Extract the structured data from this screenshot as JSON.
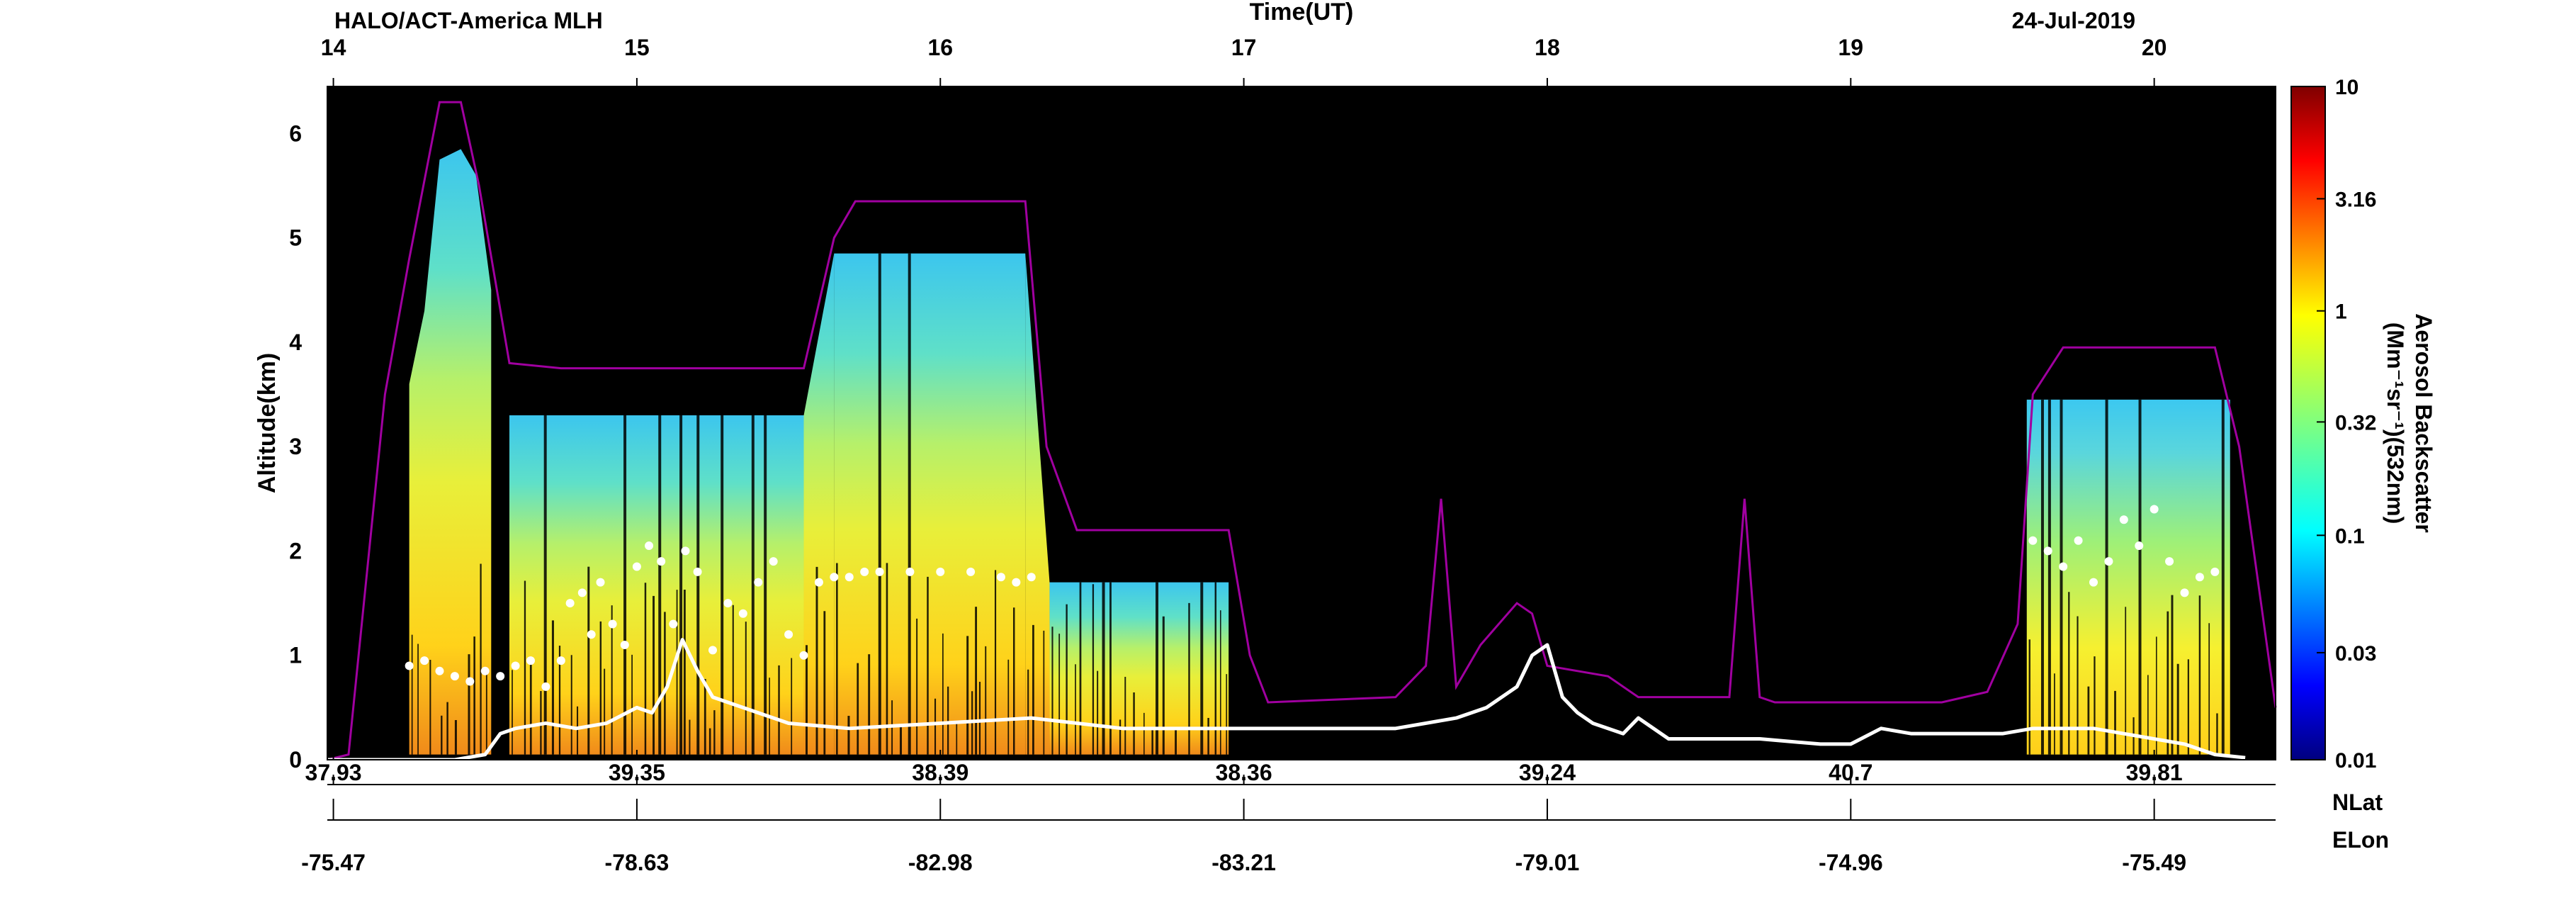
{
  "chart_data": {
    "type": "heatmap",
    "title_left": "HALO/ACT-America  MLH",
    "title_center": "Time(UT)",
    "title_right": "24-Jul-2019",
    "ylabel": "Altitude(km)",
    "xlim": [
      13.98,
      20.4
    ],
    "ylim": [
      0,
      6.45
    ],
    "time_ticks": [
      14,
      15,
      16,
      17,
      18,
      19,
      20
    ],
    "time_tick_labels": [
      "14",
      "15",
      "16",
      "17",
      "18",
      "19",
      "20"
    ],
    "y_ticks": [
      0,
      1,
      2,
      3,
      4,
      5,
      6
    ],
    "y_tick_labels": [
      "0",
      "1",
      "2",
      "3",
      "4",
      "5",
      "6"
    ],
    "lat_label": "NLat",
    "lat_ticks": [
      {
        "t": 14,
        "label": "37.93"
      },
      {
        "t": 15,
        "label": "39.35"
      },
      {
        "t": 16,
        "label": "38.39"
      },
      {
        "t": 17,
        "label": "38.36"
      },
      {
        "t": 18,
        "label": "39.24"
      },
      {
        "t": 19,
        "label": "40.7"
      },
      {
        "t": 20,
        "label": "39.81"
      }
    ],
    "lon_label": "ELon",
    "lon_ticks": [
      {
        "t": 14,
        "label": "-75.47"
      },
      {
        "t": 15,
        "label": "-78.63"
      },
      {
        "t": 16,
        "label": "-82.98"
      },
      {
        "t": 17,
        "label": "-83.21"
      },
      {
        "t": 18,
        "label": "-79.01"
      },
      {
        "t": 19,
        "label": "-74.96"
      },
      {
        "t": 20,
        "label": "-75.49"
      }
    ],
    "colorbar": {
      "label_line1": "Aerosol Backscatter",
      "label_line2": "(Mm⁻¹sr⁻¹)(532nm)",
      "scale": "log",
      "range": [
        0.01,
        10
      ],
      "ticks": [
        0.01,
        0.03,
        0.1,
        0.32,
        1,
        3.16,
        10
      ],
      "tick_labels": [
        "0.01",
        "0.03",
        "0.1",
        "0.32",
        "1",
        "3.16",
        "10"
      ],
      "colormap": "jet"
    },
    "aircraft_altitude": {
      "name": "",
      "color": "#a000a0",
      "t": [
        13.98,
        14.05,
        14.17,
        14.25,
        14.35,
        14.42,
        14.48,
        14.58,
        14.75,
        15.0,
        15.35,
        15.55,
        15.65,
        15.72,
        16.0,
        16.28,
        16.35,
        16.45,
        16.95,
        17.02,
        17.08,
        17.5,
        17.6,
        17.65,
        17.7,
        17.78,
        17.9,
        17.95,
        18.0,
        18.2,
        18.3,
        18.6,
        18.65,
        18.7,
        18.75,
        19.0,
        19.3,
        19.45,
        19.55,
        19.6,
        19.7,
        20.0,
        20.2,
        20.28,
        20.4
      ],
      "alt": [
        0.0,
        0.05,
        3.5,
        4.8,
        6.3,
        6.3,
        5.5,
        3.8,
        3.75,
        3.75,
        3.75,
        3.75,
        5.0,
        5.35,
        5.35,
        5.35,
        3.0,
        2.2,
        2.2,
        1.0,
        0.55,
        0.6,
        0.9,
        2.5,
        0.7,
        1.1,
        1.5,
        1.4,
        0.9,
        0.8,
        0.6,
        0.6,
        2.5,
        0.6,
        0.55,
        0.55,
        0.55,
        0.65,
        1.3,
        3.5,
        3.95,
        3.95,
        3.95,
        3.0,
        0.5
      ]
    },
    "mlh_dots": {
      "name": "",
      "t": [
        14.25,
        14.3,
        14.35,
        14.4,
        14.45,
        14.5,
        14.55,
        14.6,
        14.65,
        14.7,
        14.75,
        14.78,
        14.82,
        14.85,
        14.88,
        14.92,
        14.96,
        15.0,
        15.04,
        15.08,
        15.12,
        15.16,
        15.2,
        15.25,
        15.3,
        15.35,
        15.4,
        15.45,
        15.5,
        15.55,
        15.6,
        15.65,
        15.7,
        15.75,
        15.8,
        15.9,
        16.0,
        16.1,
        16.2,
        16.25,
        16.3,
        19.6,
        19.65,
        19.7,
        19.75,
        19.8,
        19.85,
        19.9,
        19.95,
        20.0,
        20.05,
        20.1,
        20.15,
        20.2
      ],
      "alt": [
        0.9,
        0.95,
        0.85,
        0.8,
        0.75,
        0.85,
        0.8,
        0.9,
        0.95,
        0.7,
        0.95,
        1.5,
        1.6,
        1.2,
        1.7,
        1.3,
        1.1,
        1.85,
        2.05,
        1.9,
        1.3,
        2.0,
        1.8,
        1.05,
        1.5,
        1.4,
        1.7,
        1.9,
        1.2,
        1.0,
        1.7,
        1.75,
        1.75,
        1.8,
        1.8,
        1.8,
        1.8,
        1.8,
        1.75,
        1.7,
        1.75,
        2.1,
        2.0,
        1.85,
        2.1,
        1.7,
        1.9,
        2.3,
        2.05,
        2.4,
        1.9,
        1.6,
        1.75,
        1.8
      ]
    },
    "mlh_lower": {
      "name": "",
      "t": [
        13.98,
        14.4,
        14.5,
        14.55,
        14.6,
        14.7,
        14.8,
        14.9,
        15.0,
        15.05,
        15.1,
        15.15,
        15.2,
        15.25,
        15.3,
        15.4,
        15.5,
        15.7,
        16.0,
        16.3,
        16.6,
        17.0,
        17.2,
        17.5,
        17.7,
        17.8,
        17.9,
        17.95,
        18.0,
        18.05,
        18.1,
        18.15,
        18.25,
        18.3,
        18.35,
        18.4,
        18.5,
        18.7,
        18.9,
        19.0,
        19.1,
        19.2,
        19.35,
        19.5,
        19.6,
        19.7,
        19.8,
        19.9,
        20.0,
        20.1,
        20.2,
        20.3
      ],
      "alt": [
        0.0,
        0.0,
        0.05,
        0.25,
        0.3,
        0.35,
        0.3,
        0.35,
        0.5,
        0.45,
        0.7,
        1.15,
        0.85,
        0.6,
        0.55,
        0.45,
        0.35,
        0.3,
        0.35,
        0.4,
        0.3,
        0.3,
        0.3,
        0.3,
        0.4,
        0.5,
        0.7,
        1.0,
        1.1,
        0.6,
        0.45,
        0.35,
        0.25,
        0.4,
        0.3,
        0.2,
        0.2,
        0.2,
        0.15,
        0.15,
        0.3,
        0.25,
        0.25,
        0.25,
        0.3,
        0.3,
        0.3,
        0.25,
        0.2,
        0.15,
        0.05,
        0.02
      ]
    },
    "data_segments": [
      {
        "t_start": 14.25,
        "t_end": 14.52,
        "top_profile": [
          [
            14.25,
            3.6
          ],
          [
            14.3,
            4.3
          ],
          [
            14.35,
            5.75
          ],
          [
            14.42,
            5.85
          ],
          [
            14.47,
            5.6
          ],
          [
            14.52,
            4.5
          ]
        ]
      },
      {
        "t_start": 14.58,
        "t_end": 15.55,
        "top_profile": [
          [
            14.58,
            3.3
          ],
          [
            15.55,
            3.3
          ]
        ]
      },
      {
        "t_start": 15.55,
        "t_end": 15.65,
        "top_profile": [
          [
            15.55,
            3.3
          ],
          [
            15.65,
            4.85
          ]
        ]
      },
      {
        "t_start": 15.65,
        "t_end": 16.28,
        "top_profile": [
          [
            15.65,
            4.85
          ],
          [
            16.28,
            4.85
          ]
        ]
      },
      {
        "t_start": 16.28,
        "t_end": 16.36,
        "top_profile": [
          [
            16.28,
            4.85
          ],
          [
            16.36,
            1.7
          ]
        ]
      },
      {
        "t_start": 16.36,
        "t_end": 16.95,
        "top_profile": [
          [
            16.36,
            1.7
          ],
          [
            16.95,
            1.7
          ]
        ]
      },
      {
        "t_start": 19.58,
        "t_end": 20.25,
        "top_profile": [
          [
            19.58,
            3.45
          ],
          [
            20.25,
            3.45
          ]
        ]
      }
    ]
  }
}
